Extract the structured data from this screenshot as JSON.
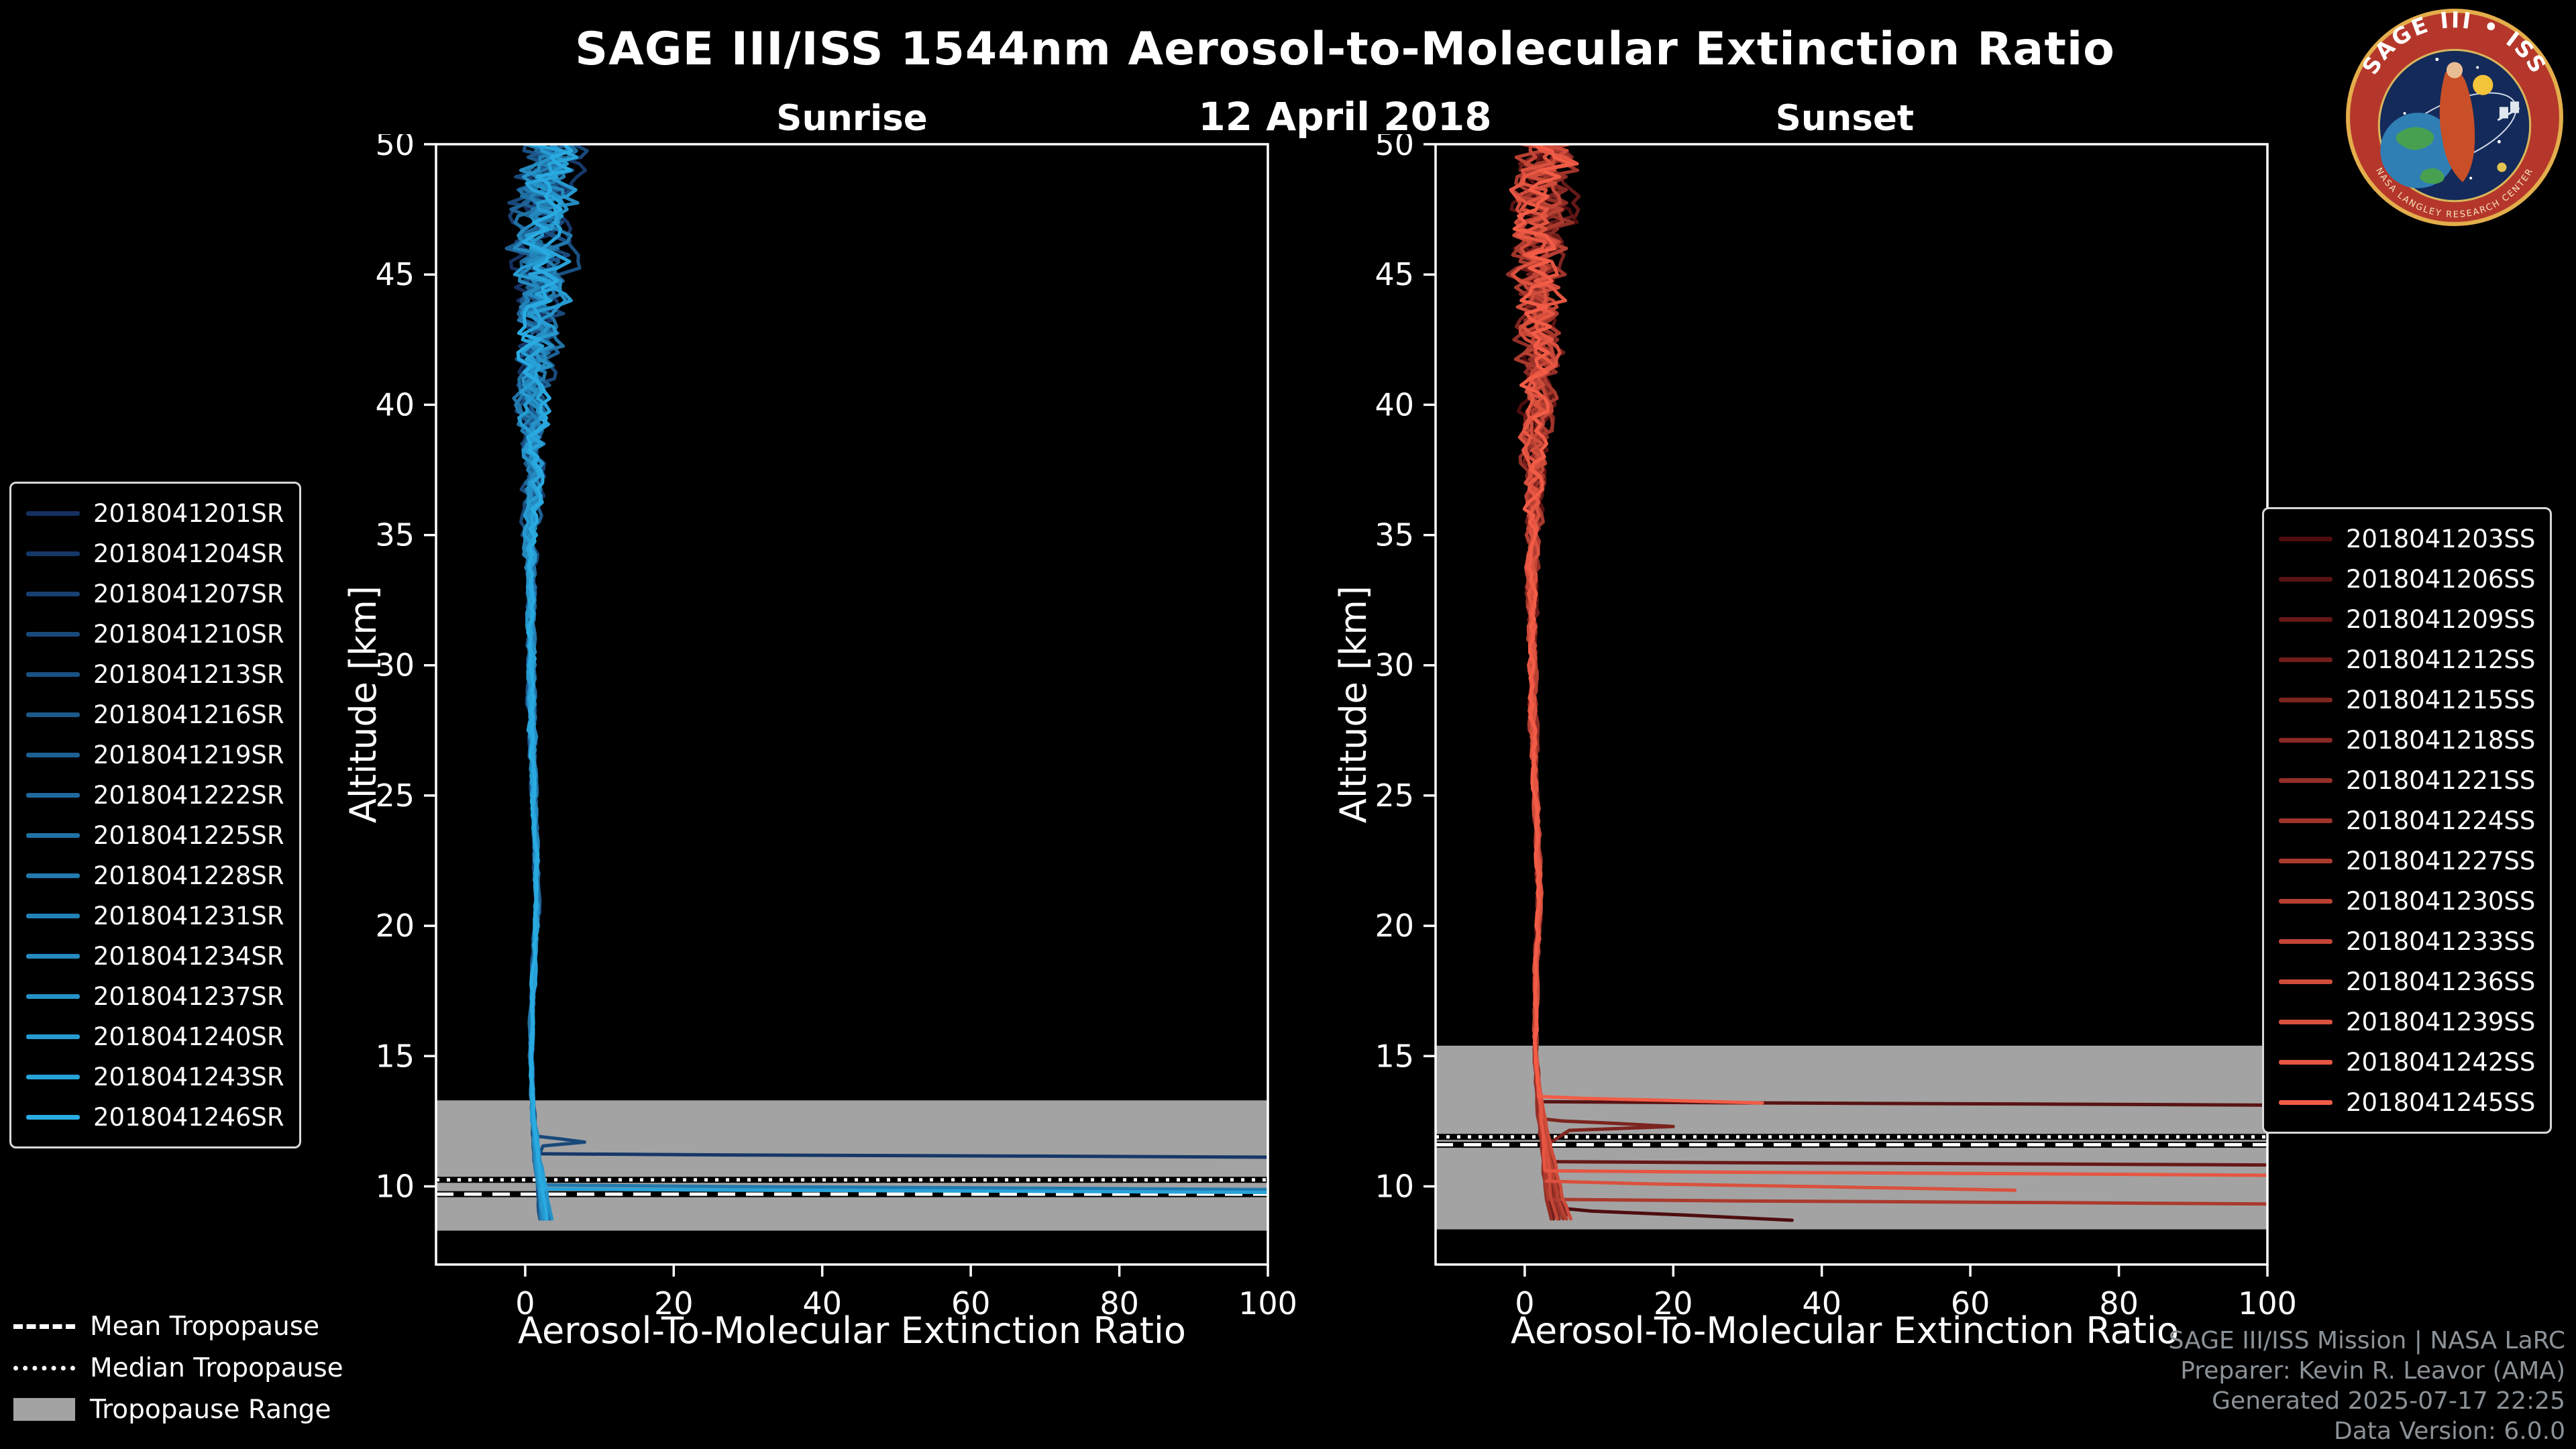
{
  "header": {
    "title": "SAGE III/ISS 1544nm Aerosol-to-Molecular Extinction Ratio",
    "date": "12 April 2018"
  },
  "logo": {
    "title": "SAGE III • ISS",
    "subtitle": "NASA LANGLEY RESEARCH CENTER"
  },
  "tropopause_legend": {
    "mean": "Mean Tropopause",
    "median": "Median Tropopause",
    "range": "Tropopause Range"
  },
  "credits": {
    "line1": "SAGE III/ISS Mission | NASA LaRC",
    "line2": "Preparer: Kevin R. Leavor (AMA)",
    "line3": "Generated 2025-07-17 22:25",
    "line4": "Data Version: 6.0.0"
  },
  "chart_data": [
    {
      "type": "line",
      "title": "Sunrise",
      "xlabel": "Aerosol-To-Molecular Extinction Ratio",
      "ylabel": "Altitude [km]",
      "xlim": [
        -12,
        100
      ],
      "ylim": [
        7,
        50
      ],
      "xticks": [
        0,
        20,
        40,
        60,
        80,
        100
      ],
      "yticks": [
        10,
        15,
        20,
        25,
        30,
        35,
        40,
        45,
        50
      ],
      "grid": false,
      "legend_position": "outside-left",
      "tropopause": {
        "mean_km": 9.7,
        "median_km": 10.25,
        "range_km": [
          8.3,
          13.3
        ]
      },
      "band_color": "#a3a3a3",
      "base_profile": [
        [
          8.7,
          2.5
        ],
        [
          9.5,
          2.2
        ],
        [
          11,
          1.5
        ],
        [
          13,
          1.0
        ],
        [
          15,
          0.8
        ],
        [
          18,
          1.1
        ],
        [
          21,
          1.6
        ],
        [
          24,
          1.3
        ],
        [
          28,
          0.9
        ],
        [
          32,
          0.8
        ],
        [
          36,
          0.9
        ],
        [
          40,
          1.2
        ],
        [
          44,
          1.8
        ],
        [
          47,
          2.2
        ],
        [
          50,
          2.5
        ]
      ],
      "noise_profile": [
        [
          8.7,
          0.25
        ],
        [
          12,
          0.3
        ],
        [
          15,
          0.35
        ],
        [
          20,
          0.5
        ],
        [
          25,
          0.6
        ],
        [
          30,
          0.9
        ],
        [
          34,
          1.2
        ],
        [
          37,
          2.2
        ],
        [
          40,
          3.5
        ],
        [
          43,
          5
        ],
        [
          46,
          6.5
        ],
        [
          50,
          7.5
        ]
      ],
      "series": [
        {
          "name": "2018041201SR",
          "color": "#153060",
          "seed": 101,
          "noise": 1.0,
          "fan": 1.0
        },
        {
          "name": "2018041204SR",
          "color": "#163869",
          "seed": 102,
          "noise": 1.1,
          "fan": 0.9,
          "spike": {
            "alt_km": 11.25,
            "max_ratio": 115,
            "droop_km": 0.15
          }
        },
        {
          "name": "2018041207SR",
          "color": "#184071",
          "seed": 103,
          "noise": 0.9,
          "fan": 1.2
        },
        {
          "name": "2018041210SR",
          "color": "#19497A",
          "seed": 104,
          "noise": 1.2,
          "fan": 1.1,
          "spike": {
            "alt_km": 12.0,
            "max_ratio": 8,
            "droop_km": 0.3,
            "returns": true
          }
        },
        {
          "name": "2018041213SR",
          "color": "#1A5183",
          "seed": 105,
          "noise": 1.0,
          "fan": 0.8
        },
        {
          "name": "2018041216SR",
          "color": "#1C598B",
          "seed": 106,
          "noise": 0.8,
          "fan": 1.3
        },
        {
          "name": "2018041219SR",
          "color": "#1D6194",
          "seed": 107,
          "noise": 1.1,
          "fan": 1.0
        },
        {
          "name": "2018041222SR",
          "color": "#1E699D",
          "seed": 108,
          "noise": 0.9,
          "fan": 1.1
        },
        {
          "name": "2018041225SR",
          "color": "#2072A5",
          "seed": 109,
          "noise": 1.2,
          "fan": 0.9
        },
        {
          "name": "2018041228SR",
          "color": "#217AAE",
          "seed": 110,
          "noise": 1.0,
          "fan": 1.0,
          "spike": {
            "alt_km": 10.05,
            "max_ratio": 115,
            "droop_km": 0.2
          }
        },
        {
          "name": "2018041231SR",
          "color": "#2282B7",
          "seed": 111,
          "noise": 0.85,
          "fan": 1.2
        },
        {
          "name": "2018041234SR",
          "color": "#248ABF",
          "seed": 112,
          "noise": 1.15,
          "fan": 0.9
        },
        {
          "name": "2018041237SR",
          "color": "#2592C8",
          "seed": 113,
          "noise": 0.95,
          "fan": 1.4
        },
        {
          "name": "2018041240SR",
          "color": "#269BD1",
          "seed": 114,
          "noise": 1.05,
          "fan": 1.0
        },
        {
          "name": "2018041243SR",
          "color": "#28A3D9",
          "seed": 115,
          "noise": 1.1,
          "fan": 1.3,
          "spike": {
            "alt_km": 9.9,
            "max_ratio": 115,
            "droop_km": 0.15
          }
        },
        {
          "name": "2018041246SR",
          "color": "#29ABE2",
          "seed": 116,
          "noise": 0.9,
          "fan": 1.2
        }
      ]
    },
    {
      "type": "line",
      "title": "Sunset",
      "xlabel": "Aerosol-To-Molecular Extinction Ratio",
      "ylabel": "Altitude [km]",
      "xlim": [
        -12,
        100
      ],
      "ylim": [
        7,
        50
      ],
      "xticks": [
        0,
        20,
        40,
        60,
        80,
        100
      ],
      "yticks": [
        10,
        15,
        20,
        25,
        30,
        35,
        40,
        45,
        50
      ],
      "grid": false,
      "legend_position": "outside-right",
      "tropopause": {
        "mean_km": 11.6,
        "median_km": 11.9,
        "range_km": [
          8.35,
          15.4
        ]
      },
      "band_color": "#a3a3a3",
      "base_profile": [
        [
          8.7,
          4.0
        ],
        [
          9.5,
          3.2
        ],
        [
          11,
          2.6
        ],
        [
          13,
          2.0
        ],
        [
          15,
          1.4
        ],
        [
          18,
          1.5
        ],
        [
          21,
          2.0
        ],
        [
          24,
          1.6
        ],
        [
          28,
          1.1
        ],
        [
          32,
          1.0
        ],
        [
          36,
          1.1
        ],
        [
          40,
          1.5
        ],
        [
          44,
          2.0
        ],
        [
          47,
          2.4
        ],
        [
          50,
          2.6
        ]
      ],
      "noise_profile": [
        [
          8.7,
          0.25
        ],
        [
          12,
          0.3
        ],
        [
          15,
          0.35
        ],
        [
          20,
          0.5
        ],
        [
          25,
          0.6
        ],
        [
          30,
          0.9
        ],
        [
          34,
          1.2
        ],
        [
          37,
          2.2
        ],
        [
          40,
          3.5
        ],
        [
          43,
          5
        ],
        [
          46,
          6.5
        ],
        [
          50,
          7.5
        ]
      ],
      "series": [
        {
          "name": "2018041203SS",
          "color": "#4D0D0F",
          "seed": 201,
          "noise": 1.0,
          "fan": 1.1,
          "spike": {
            "alt_km": 9.2,
            "max_ratio": 36,
            "droop_km": 0.5
          }
        },
        {
          "name": "2018041206SS",
          "color": "#591313",
          "seed": 202,
          "noise": 1.1,
          "fan": 0.9,
          "spike": {
            "alt_km": 13.25,
            "max_ratio": 115,
            "droop_km": 0.15
          }
        },
        {
          "name": "2018041209SS",
          "color": "#651817",
          "seed": 203,
          "noise": 0.9,
          "fan": 1.3,
          "spike": {
            "alt_km": 10.95,
            "max_ratio": 115,
            "droop_km": 0.15
          }
        },
        {
          "name": "2018041212SS",
          "color": "#701E1B",
          "seed": 204,
          "noise": 1.2,
          "fan": 1.0
        },
        {
          "name": "2018041215SS",
          "color": "#7C241F",
          "seed": 205,
          "noise": 1.0,
          "fan": 1.5,
          "spike": {
            "alt_km": 12.6,
            "max_ratio": 20,
            "droop_km": 0.3,
            "returns": true
          }
        },
        {
          "name": "2018041218SS",
          "color": "#882923",
          "seed": 206,
          "noise": 0.85,
          "fan": 1.2
        },
        {
          "name": "2018041221SS",
          "color": "#942F27",
          "seed": 207,
          "noise": 1.15,
          "fan": 0.9
        },
        {
          "name": "2018041224SS",
          "color": "#9F342A",
          "seed": 208,
          "noise": 0.95,
          "fan": 1.3
        },
        {
          "name": "2018041227SS",
          "color": "#AB3A2E",
          "seed": 209,
          "noise": 1.05,
          "fan": 1.0,
          "spike": {
            "alt_km": 9.5,
            "max_ratio": 115,
            "droop_km": 0.2
          }
        },
        {
          "name": "2018041230SS",
          "color": "#B74032",
          "seed": 210,
          "noise": 1.1,
          "fan": 1.4
        },
        {
          "name": "2018041233SS",
          "color": "#C34536",
          "seed": 211,
          "noise": 0.9,
          "fan": 1.1
        },
        {
          "name": "2018041236SS",
          "color": "#CF4B3A",
          "seed": 212,
          "noise": 1.0,
          "fan": 1.6
        },
        {
          "name": "2018041239SS",
          "color": "#DA513E",
          "seed": 213,
          "noise": 1.05,
          "fan": 1.2,
          "spike": {
            "alt_km": 10.2,
            "max_ratio": 66,
            "droop_km": 0.35
          }
        },
        {
          "name": "2018041242SS",
          "color": "#E65642",
          "seed": 214,
          "noise": 0.95,
          "fan": 1.0,
          "spike": {
            "alt_km": 10.6,
            "max_ratio": 115,
            "droop_km": 0.2
          }
        },
        {
          "name": "2018041245SS",
          "color": "#F25C46",
          "seed": 215,
          "noise": 1.0,
          "fan": 1.3,
          "spike": {
            "alt_km": 13.45,
            "max_ratio": 32,
            "droop_km": 0.25
          }
        }
      ]
    }
  ]
}
